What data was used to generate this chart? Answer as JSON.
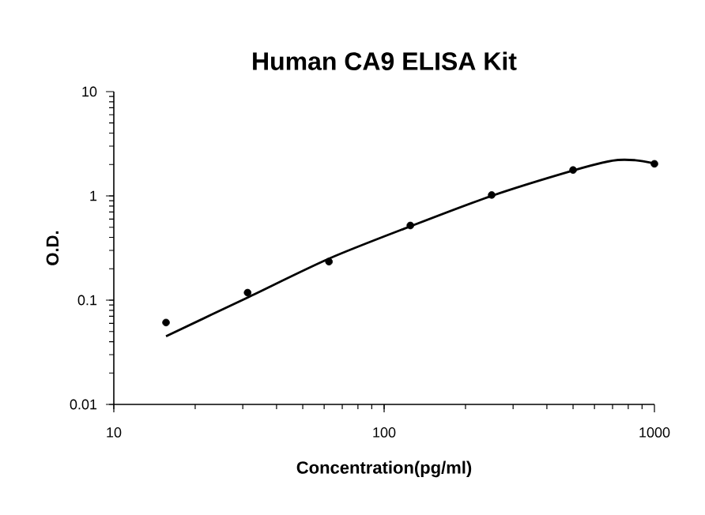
{
  "chart_data": {
    "type": "scatter",
    "title": "Human CA9 ELISA Kit",
    "xlabel": "Concentration(pg/ml)",
    "ylabel": "O.D.",
    "log": "xy",
    "xlim": [
      10,
      1000
    ],
    "ylim": [
      0.01,
      10
    ],
    "xticks": [
      10,
      100,
      1000
    ],
    "yticks": [
      0.01,
      0.1,
      1,
      10
    ],
    "grid": false,
    "series": [
      {
        "color": "#000000",
        "marker": "circle",
        "x": [
          15.6,
          31.25,
          62.5,
          125,
          250,
          500,
          1000
        ],
        "values": [
          0.061,
          0.118,
          0.234,
          0.52,
          1.02,
          1.77,
          2.03
        ]
      },
      {
        "type": "line",
        "color": "#000000",
        "marker": "none",
        "line_style": "solid",
        "x": [
          15.6,
          31.25,
          62.5,
          125,
          250,
          500,
          700,
          850,
          1000
        ],
        "values": [
          0.045,
          0.106,
          0.25,
          0.51,
          1.0,
          1.75,
          2.18,
          2.2,
          2.05
        ]
      }
    ]
  }
}
